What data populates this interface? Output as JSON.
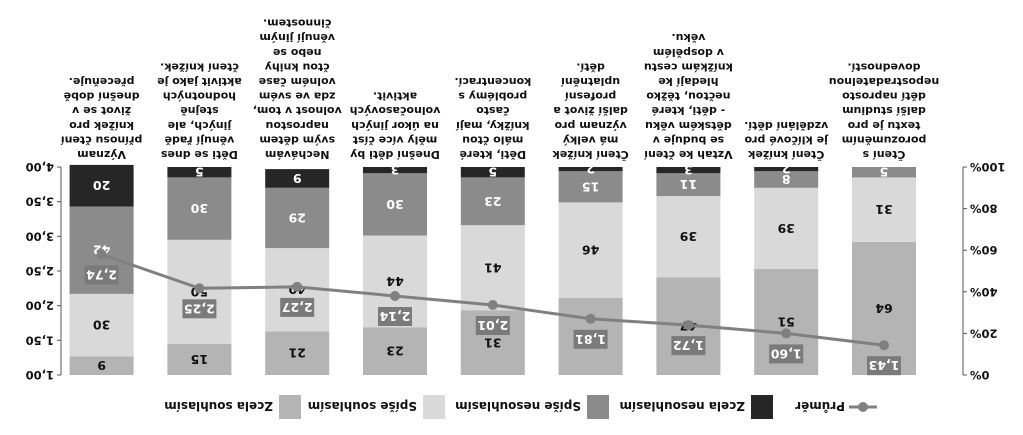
{
  "chart_data": {
    "type": "bar",
    "orientation": "vertical",
    "stacked": true,
    "rendered_rotated_180": true,
    "categories": [
      "Čtení s porozuměním textu je pro další studium dětí naprosto nepostradatelnou dovedností.",
      "Čtení knížek je klíčové pro vzdělání dětí.",
      "Vztah ke čtení se buduje v dětském věku - děti, které nečtou, těžko hledají ke knížkám cestu v dospělém věku.",
      "Čtení knížek má velký význam pro další život a profesní uplatnění dětí.",
      "Děti, které málo čtou knížky, mají často problémy s koncentrací.",
      "Dnešní děti by měly více číst na úkor jiných volnočasových aktivit.",
      "Nechávám svým dětem naprostou volnost v tom, zda ve svém volném čase čtou knihy nebo se věnují jiným činnostem.",
      "Děti se dnes věnují řadě jiných, ale stejně hodnotných aktivit jako je čtení knížek.",
      "Význam přínosu čtení knížek pro život se v dnešní době přeceňuje."
    ],
    "series": [
      {
        "name": "Zcela souhlasím",
        "color": "#b4b4b4",
        "values": [
          64,
          51,
          47,
          37,
          31,
          23,
          21,
          15,
          9
        ]
      },
      {
        "name": "Spíše souhlasím",
        "color": "#d9d9d9",
        "values": [
          31,
          39,
          39,
          46,
          41,
          44,
          40,
          50,
          30
        ]
      },
      {
        "name": "Spíše nesouhlasím",
        "color": "#8b8b8b",
        "values": [
          5,
          8,
          11,
          15,
          23,
          30,
          29,
          30,
          42
        ]
      },
      {
        "name": "Zcela nesouhlasím",
        "color": "#262626",
        "values": [
          0,
          2,
          3,
          2,
          5,
          3,
          9,
          5,
          20
        ]
      }
    ],
    "value_labels": [
      [
        "64",
        "31",
        "5",
        ""
      ],
      [
        "51",
        "39",
        "8",
        "2"
      ],
      [
        "47",
        "39",
        "11",
        "3"
      ],
      [
        "37",
        "46",
        "15",
        "2"
      ],
      [
        "31",
        "41",
        "23",
        "5"
      ],
      [
        "23",
        "44",
        "30",
        "3"
      ],
      [
        "21",
        "40",
        "29",
        "9"
      ],
      [
        "15",
        "50",
        "30",
        "5"
      ],
      [
        "9",
        "30",
        "42",
        "20"
      ]
    ],
    "line_series": {
      "name": "Průměr",
      "color": "#808080",
      "values": [
        1.43,
        1.6,
        1.72,
        1.81,
        2.01,
        2.14,
        2.27,
        2.25,
        2.74
      ],
      "labels": [
        "1,43",
        "1,60",
        "1,72",
        "1,81",
        "2,01",
        "2,14",
        "2,27",
        "2,25",
        "2,74"
      ]
    },
    "left_axis": {
      "ylim": [
        0,
        100
      ],
      "ticks": [
        "0%",
        "20%",
        "40%",
        "60%",
        "80%",
        "100%"
      ]
    },
    "right_axis": {
      "ylim": [
        1.0,
        4.0
      ],
      "ticks": [
        "1,00",
        "1,50",
        "2,00",
        "2,50",
        "3,00",
        "3,50",
        "4,00"
      ]
    },
    "grid": false,
    "legend_position": "bottom"
  }
}
